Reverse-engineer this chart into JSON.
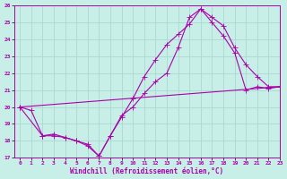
{
  "xlabel": "Windchill (Refroidissement éolien,°C)",
  "xlim": [
    -0.5,
    23
  ],
  "ylim": [
    17,
    26
  ],
  "yticks": [
    17,
    18,
    19,
    20,
    21,
    22,
    23,
    24,
    25,
    26
  ],
  "xticks": [
    0,
    1,
    2,
    3,
    4,
    5,
    6,
    7,
    8,
    9,
    10,
    11,
    12,
    13,
    14,
    15,
    16,
    17,
    18,
    19,
    20,
    21,
    22,
    23
  ],
  "background_color": "#c8eee8",
  "grid_color": "#aad8d0",
  "line_color": "#aa00aa",
  "line1_x": [
    0,
    1,
    2,
    3,
    4,
    5,
    6,
    7,
    8,
    9,
    10,
    11,
    12,
    13,
    14,
    15,
    16,
    17,
    18,
    19,
    20,
    21,
    22,
    23
  ],
  "line1_y": [
    20.0,
    19.8,
    18.3,
    18.4,
    18.2,
    18.0,
    17.7,
    17.1,
    18.3,
    19.5,
    20.0,
    20.8,
    21.5,
    22.0,
    23.5,
    25.3,
    25.8,
    25.0,
    24.2,
    23.2,
    21.0,
    21.2,
    21.1,
    21.2
  ],
  "line2_x": [
    0,
    2,
    3,
    4,
    5,
    6,
    7,
    8,
    9,
    10,
    11,
    12,
    13,
    14,
    15,
    16,
    17,
    18,
    19,
    20,
    21,
    22,
    23
  ],
  "line2_y": [
    20.0,
    18.3,
    18.3,
    18.2,
    18.0,
    17.8,
    17.1,
    18.3,
    19.4,
    20.5,
    21.8,
    22.8,
    23.7,
    24.3,
    24.9,
    25.8,
    25.3,
    24.8,
    23.5,
    22.5,
    21.8,
    21.2,
    21.2
  ],
  "line3_x": [
    0,
    23
  ],
  "line3_y": [
    20.0,
    21.2
  ]
}
